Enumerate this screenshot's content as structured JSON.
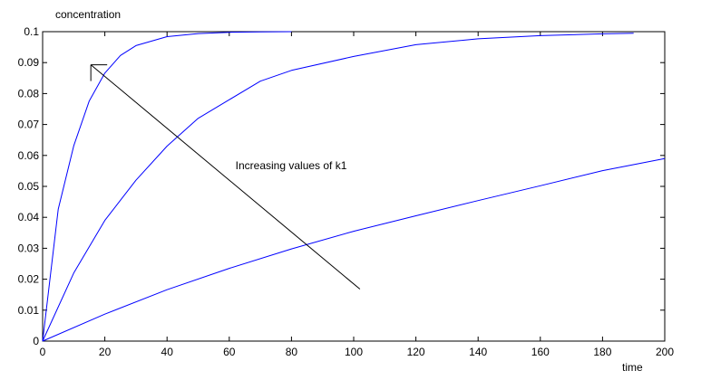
{
  "chart_data": {
    "type": "line",
    "ylabel": "concentration",
    "xlabel": "time",
    "xlim": [
      0,
      200
    ],
    "ylim": [
      0,
      0.1
    ],
    "x_ticks": [
      0,
      20,
      40,
      60,
      80,
      100,
      120,
      140,
      160,
      180,
      200
    ],
    "y_ticks": [
      0,
      0.01,
      0.02,
      0.03,
      0.04,
      0.05,
      0.06,
      0.07,
      0.08,
      0.09,
      0.1
    ],
    "x_tick_labels": [
      "0",
      "20",
      "40",
      "60",
      "80",
      "100",
      "120",
      "140",
      "160",
      "180",
      "200"
    ],
    "y_tick_labels": [
      "0",
      "0.01",
      "0.02",
      "0.03",
      "0.04",
      "0.05",
      "0.06",
      "0.07",
      "0.08",
      "0.09",
      "0.1"
    ],
    "grid": false,
    "line_color": "#0000ff",
    "series": [
      {
        "x": [
          0,
          5,
          10,
          15,
          20,
          25,
          30,
          40,
          50,
          60,
          70,
          80
        ],
        "y": [
          0,
          0.0426,
          0.0631,
          0.0776,
          0.0866,
          0.0923,
          0.0955,
          0.0984,
          0.0994,
          0.0998,
          0.0999,
          0.1
        ]
      },
      {
        "x": [
          0,
          10,
          20,
          30,
          40,
          50,
          60,
          70,
          80,
          100,
          120,
          140,
          160,
          180,
          190
        ],
        "y": [
          0,
          0.022,
          0.039,
          0.052,
          0.063,
          0.072,
          0.078,
          0.084,
          0.0875,
          0.092,
          0.0958,
          0.0977,
          0.0987,
          0.0993,
          0.0995
        ]
      },
      {
        "x": [
          0,
          20,
          40,
          60,
          80,
          100,
          120,
          140,
          160,
          180,
          200
        ],
        "y": [
          0,
          0.0087,
          0.0166,
          0.0235,
          0.0298,
          0.0355,
          0.0405,
          0.0454,
          0.0502,
          0.0551,
          0.059
        ]
      }
    ],
    "annotations": [
      {
        "text": "Increasing values of k1",
        "x": 62,
        "y": 0.0555,
        "arrow_from": [
          102,
          0.0168
        ],
        "arrow_to": [
          15.5,
          0.0893
        ]
      }
    ]
  }
}
